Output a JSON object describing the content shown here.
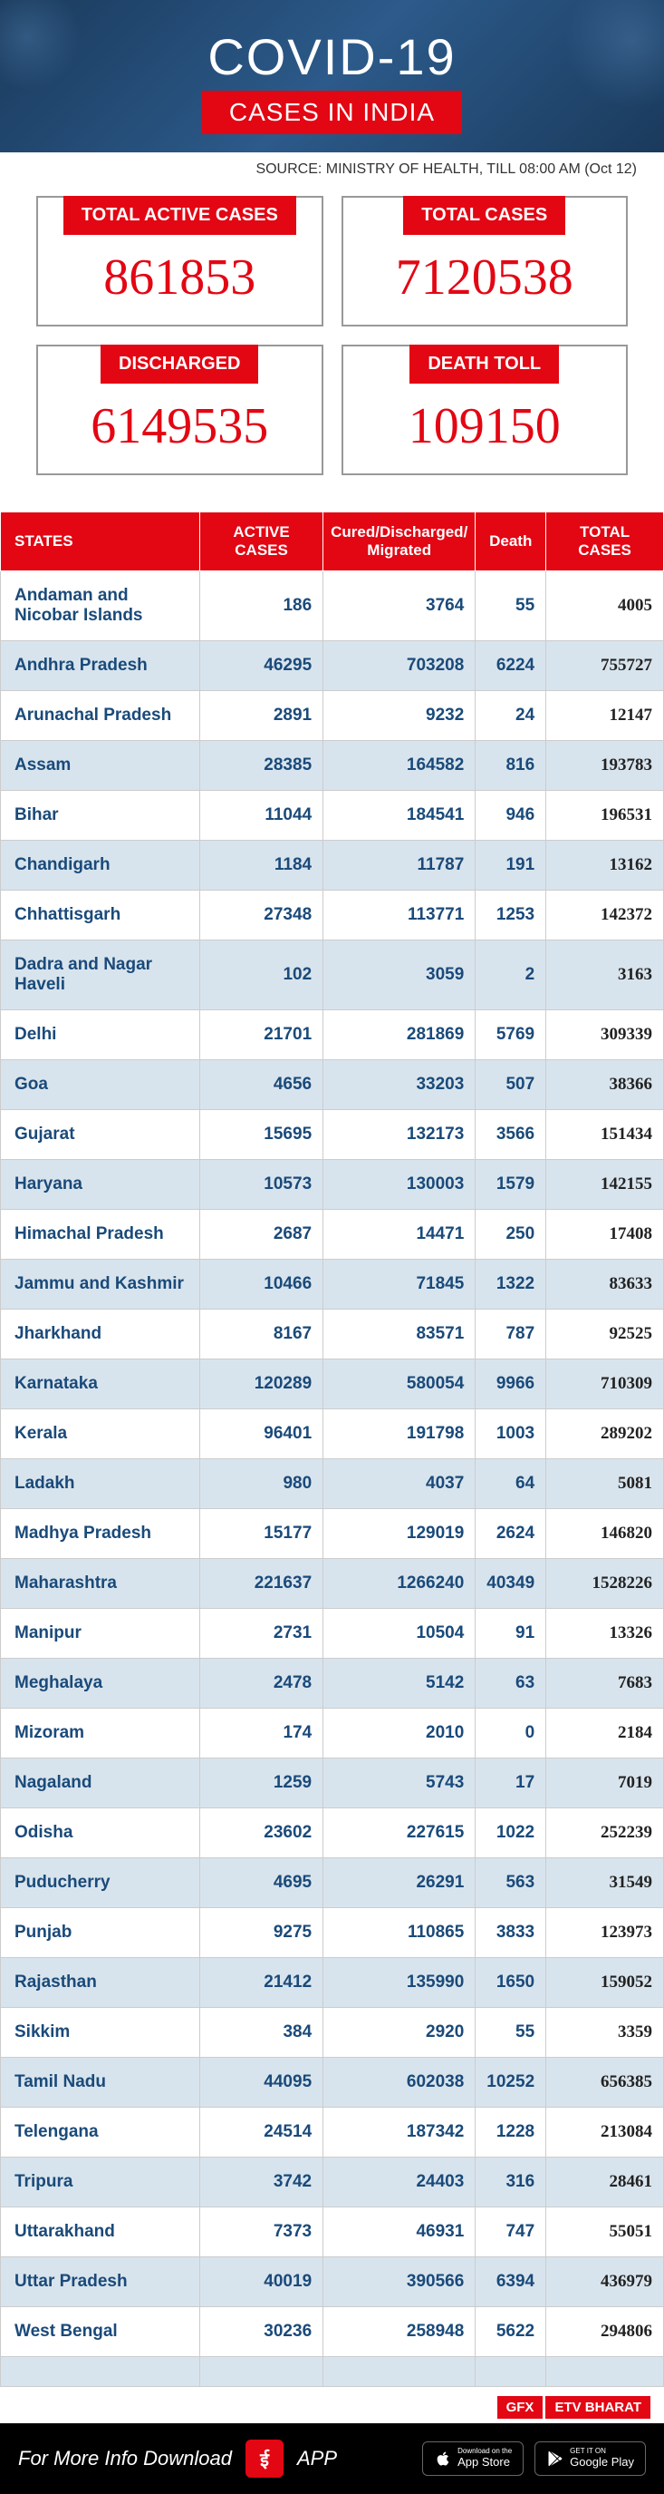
{
  "header": {
    "title": "COVID-19",
    "subtitle": "CASES IN INDIA"
  },
  "source": "SOURCE: MINISTRY OF HEALTH, TILL 08:00 AM (Oct 12)",
  "stats": [
    {
      "label": "TOTAL ACTIVE CASES",
      "value": "861853"
    },
    {
      "label": "TOTAL CASES",
      "value": "7120538"
    },
    {
      "label": "DISCHARGED",
      "value": "6149535"
    },
    {
      "label": "DEATH TOLL",
      "value": "109150"
    }
  ],
  "table": {
    "columns": [
      "STATES",
      "ACTIVE CASES",
      "Cured/Discharged/\nMigrated",
      "Death",
      "TOTAL CASES"
    ],
    "rows": [
      [
        "Andaman and Nicobar Islands",
        "186",
        "3764",
        "55",
        "4005"
      ],
      [
        "Andhra Pradesh",
        "46295",
        "703208",
        "6224",
        "755727"
      ],
      [
        "Arunachal Pradesh",
        "2891",
        "9232",
        "24",
        "12147"
      ],
      [
        "Assam",
        "28385",
        "164582",
        "816",
        "193783"
      ],
      [
        "Bihar",
        "11044",
        "184541",
        "946",
        "196531"
      ],
      [
        "Chandigarh",
        "1184",
        "11787",
        "191",
        "13162"
      ],
      [
        "Chhattisgarh",
        "27348",
        "113771",
        "1253",
        "142372"
      ],
      [
        "Dadra and Nagar Haveli",
        "102",
        "3059",
        "2",
        "3163"
      ],
      [
        "Delhi",
        "21701",
        "281869",
        "5769",
        "309339"
      ],
      [
        "Goa",
        "4656",
        "33203",
        "507",
        "38366"
      ],
      [
        "Gujarat",
        "15695",
        "132173",
        "3566",
        "151434"
      ],
      [
        "Haryana",
        "10573",
        "130003",
        "1579",
        "142155"
      ],
      [
        "Himachal Pradesh",
        "2687",
        "14471",
        "250",
        "17408"
      ],
      [
        "Jammu and Kashmir",
        "10466",
        "71845",
        "1322",
        "83633"
      ],
      [
        "Jharkhand",
        "8167",
        "83571",
        "787",
        "92525"
      ],
      [
        "Karnataka",
        "120289",
        "580054",
        "9966",
        "710309"
      ],
      [
        "Kerala",
        "96401",
        "191798",
        "1003",
        "289202"
      ],
      [
        "Ladakh",
        "980",
        "4037",
        "64",
        "5081"
      ],
      [
        "Madhya Pradesh",
        "15177",
        "129019",
        "2624",
        "146820"
      ],
      [
        "Maharashtra",
        "221637",
        "1266240",
        "40349",
        "1528226"
      ],
      [
        "Manipur",
        "2731",
        "10504",
        "91",
        "13326"
      ],
      [
        "Meghalaya",
        "2478",
        "5142",
        "63",
        "7683"
      ],
      [
        "Mizoram",
        "174",
        "2010",
        "0",
        "2184"
      ],
      [
        "Nagaland",
        "1259",
        "5743",
        "17",
        "7019"
      ],
      [
        "Odisha",
        "23602",
        "227615",
        "1022",
        "252239"
      ],
      [
        "Puducherry",
        "4695",
        "26291",
        "563",
        "31549"
      ],
      [
        "Punjab",
        "9275",
        "110865",
        "3833",
        "123973"
      ],
      [
        "Rajasthan",
        "21412",
        "135990",
        "1650",
        "159052"
      ],
      [
        "Sikkim",
        "384",
        "2920",
        "55",
        "3359"
      ],
      [
        "Tamil Nadu",
        "44095",
        "602038",
        "10252",
        "656385"
      ],
      [
        "Telengana",
        "24514",
        "187342",
        "1228",
        "213084"
      ],
      [
        "Tripura",
        "3742",
        "24403",
        "316",
        "28461"
      ],
      [
        "Uttarakhand",
        "7373",
        "46931",
        "747",
        "55051"
      ],
      [
        "Uttar Pradesh",
        "40019",
        "390566",
        "6394",
        "436979"
      ],
      [
        "West Bengal",
        "30236",
        "258948",
        "5622",
        "294806"
      ],
      [
        "",
        "",
        "",
        "",
        ""
      ]
    ]
  },
  "gfx": {
    "badge1": "GFX",
    "badge2": "ETV BHARAT"
  },
  "footer": {
    "text": "For More Info Download",
    "app_label": "APP",
    "appstore_small": "Download on the",
    "appstore": "App Store",
    "googleplay_small": "GET IT ON",
    "googleplay": "Google Play"
  }
}
